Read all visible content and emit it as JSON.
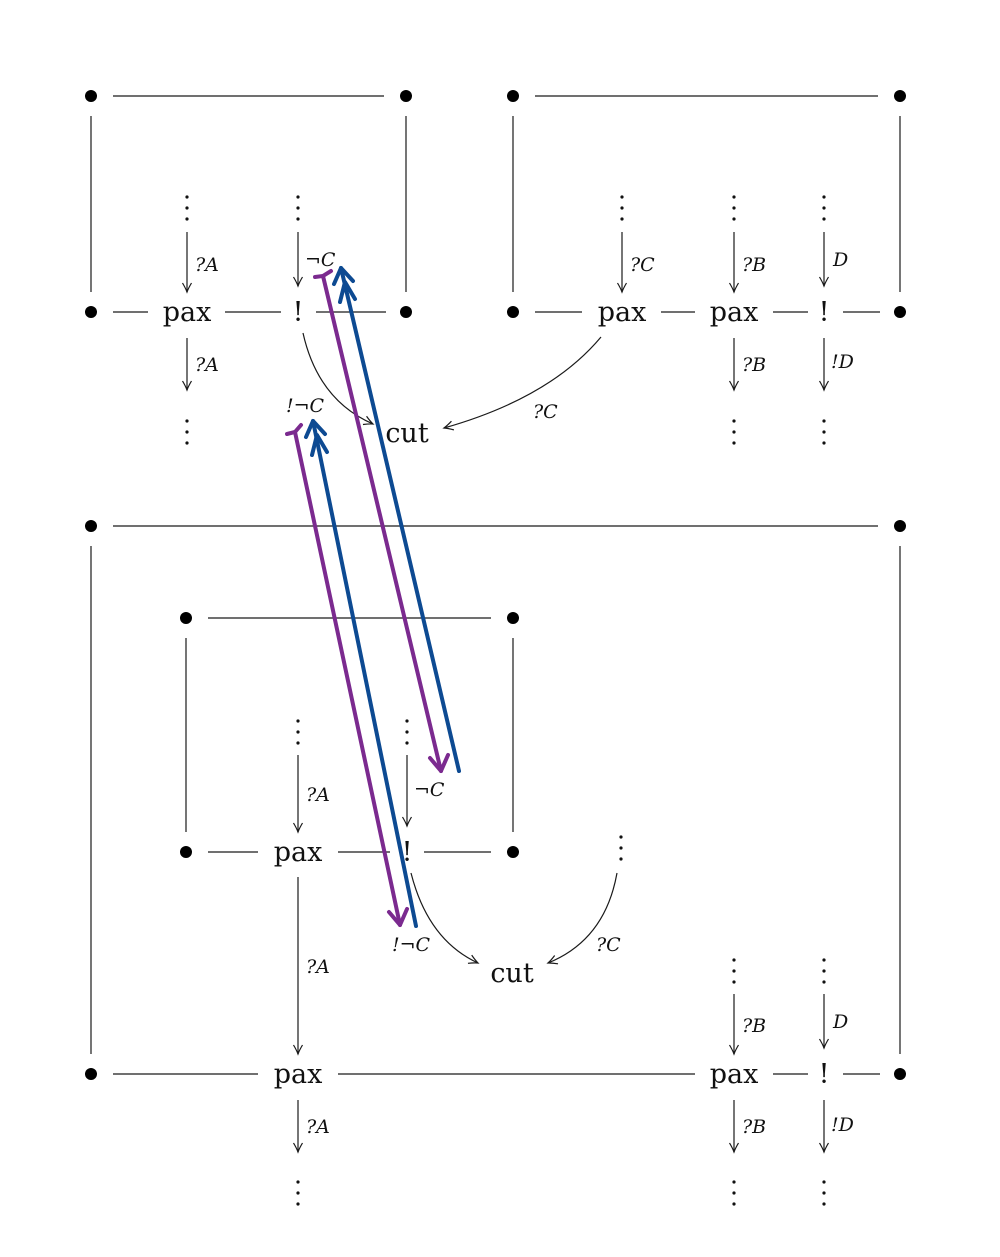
{
  "labels": {
    "pax": "pax",
    "cut": "cut",
    "bang": "!",
    "qA": "?A",
    "qB": "?B",
    "qC": "?C",
    "D": "D",
    "bangD": "!D",
    "negC": "¬C",
    "bangNegC": "!¬C"
  },
  "colors": {
    "purple_arrow": "#7b2a8f",
    "blue_arrow": "#0d4a92",
    "lines": "#1a1a1a"
  }
}
